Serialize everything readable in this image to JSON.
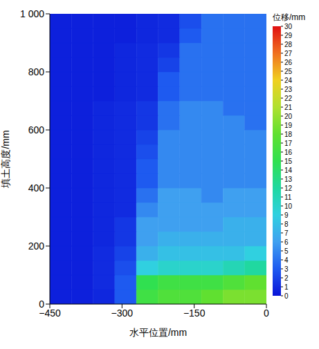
{
  "chart_data": {
    "type": "heatmap",
    "x_label": "水平位置/mm",
    "y_label": "填土高度/mm",
    "xlim": [
      -450,
      0
    ],
    "ylim": [
      0,
      1000
    ],
    "xticks": [
      {
        "value": -450,
        "label": "−450"
      },
      {
        "value": -300,
        "label": "−300"
      },
      {
        "value": -150,
        "label": "−150"
      },
      0
    ],
    "yticks": [
      0,
      200,
      400,
      600,
      800,
      {
        "value": 1000,
        "label": "1 000"
      }
    ],
    "cells": {
      "x_edges": [
        -450,
        -405,
        -360,
        -315,
        -270,
        -225,
        -180,
        -135,
        -90,
        -45,
        0
      ],
      "y_edges": [
        0,
        50,
        100,
        150,
        200,
        250,
        300,
        350,
        400,
        450,
        500,
        550,
        600,
        650,
        700,
        750,
        800,
        850,
        900,
        950,
        1000
      ],
      "values": [
        [
          0.5,
          0.5,
          0.8,
          3,
          16,
          17,
          17,
          18,
          19,
          19
        ],
        [
          0.5,
          0.5,
          1,
          3,
          15,
          16,
          16,
          16,
          17,
          18
        ],
        [
          0.5,
          0.5,
          1,
          2.5,
          9,
          10,
          10,
          10,
          11,
          12
        ],
        [
          0.5,
          0.5,
          1,
          2,
          7,
          8,
          8,
          8,
          8,
          9
        ],
        [
          0.5,
          0.5,
          0.8,
          1.5,
          6,
          7,
          7,
          7,
          7,
          7
        ],
        [
          0.5,
          0.5,
          0.8,
          1.5,
          6,
          6,
          6,
          6,
          7,
          7
        ],
        [
          0.5,
          0.5,
          0.8,
          1,
          5,
          6,
          6,
          6,
          6,
          6
        ],
        [
          0.5,
          0.5,
          0.8,
          1,
          4,
          6,
          6,
          5,
          6,
          6
        ],
        [
          0.5,
          0.5,
          0.8,
          1,
          3,
          5,
          5,
          5,
          5,
          5
        ],
        [
          0.5,
          0.5,
          0.8,
          1,
          3,
          5,
          5,
          5,
          5,
          5
        ],
        [
          0.5,
          0.5,
          0.8,
          1,
          2.5,
          5,
          5,
          5,
          5,
          5
        ],
        [
          0.5,
          0.5,
          0.8,
          1,
          2,
          5,
          5,
          5,
          5,
          5
        ],
        [
          0.5,
          0.5,
          0.8,
          1,
          1.5,
          4,
          5,
          5,
          5,
          4
        ],
        [
          0.5,
          0.5,
          0.8,
          1,
          1.5,
          4,
          5,
          5,
          4,
          4
        ],
        [
          0.5,
          0.5,
          0.5,
          0.8,
          1,
          3,
          4,
          4,
          4,
          4
        ],
        [
          0.5,
          0.5,
          0.5,
          0.8,
          1,
          3,
          4,
          4,
          4,
          4
        ],
        [
          0.5,
          0.5,
          0.5,
          0.8,
          1,
          2,
          4,
          4,
          4,
          4
        ],
        [
          0.5,
          0.5,
          0.5,
          0.8,
          1,
          1.5,
          4,
          4,
          4,
          4
        ],
        [
          0.5,
          0.5,
          0.5,
          0.5,
          0.8,
          1,
          3,
          4,
          4,
          4
        ],
        [
          0.5,
          0.5,
          0.5,
          0.5,
          0.8,
          1,
          2.5,
          4,
          4,
          4
        ]
      ]
    },
    "colorbar": {
      "label": "位移/mm",
      "range": [
        0,
        30
      ],
      "ticks": [
        0,
        1,
        2,
        3,
        4,
        5,
        6,
        7,
        8,
        9,
        10,
        11,
        12,
        13,
        14,
        15,
        16,
        17,
        18,
        19,
        20,
        21,
        22,
        23,
        24,
        25,
        26,
        27,
        28,
        29,
        30
      ]
    }
  }
}
